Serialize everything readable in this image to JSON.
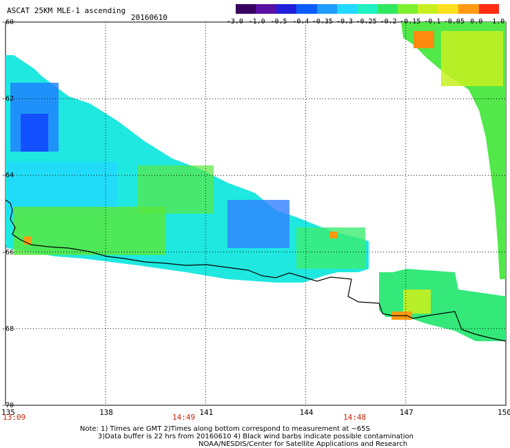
{
  "header": {
    "title": "ASCAT 25KM MLE-1 ascending",
    "date": "20160610"
  },
  "colorbar": {
    "labels": [
      "-3.0",
      "-1.0",
      "-0.5",
      "-0.4",
      "-0.35",
      "-0.3",
      "-0.25",
      "-0.2",
      "-0.15",
      "-0.1",
      "-0.05",
      "0.0",
      "1.0"
    ],
    "colors": [
      "#3a0060",
      "#5a10a0",
      "#2020d8",
      "#0a5cff",
      "#1f9cff",
      "#22d8ff",
      "#1ff0c0",
      "#30e860",
      "#7cf030",
      "#c8f020",
      "#ffe020",
      "#ff9a10",
      "#ff2a10"
    ]
  },
  "axes": {
    "lat_labels": [
      "-60",
      "-62",
      "-64",
      "-66",
      "-68",
      "-70"
    ],
    "lon_labels": [
      "135",
      "138",
      "141",
      "144",
      "147",
      "150"
    ],
    "lat_range": [
      -70,
      -60
    ],
    "lon_range": [
      135,
      150
    ],
    "grid": true
  },
  "times": [
    "13:09",
    "14:49",
    "14:48"
  ],
  "notes": {
    "line1": "Note: 1) Times are GMT 2)Times along bottom correspond to measurement at ~65S",
    "line2": "3)Data buffer is 22 hrs from 20160610 4) Black wind barbs indicate possible contamination",
    "line3": "NOAA/NESDIS/Center for Satellite Applications and Research"
  }
}
